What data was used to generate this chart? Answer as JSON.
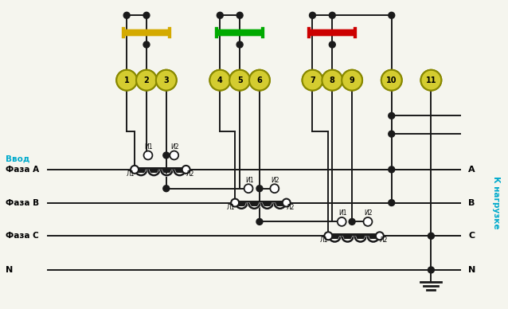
{
  "bg_color": "#f5f5ee",
  "fig_w": 6.38,
  "fig_h": 3.88,
  "vvod_label": "Ввод",
  "faza_a": "Фаза А",
  "faza_b": "Фаза В",
  "faza_c": "Фаза С",
  "n_label": "N",
  "k_nagruzke": "К нагрузке",
  "terminal_numbers": [
    "1",
    "2",
    "3",
    "4",
    "5",
    "6",
    "7",
    "8",
    "9",
    "10",
    "11"
  ],
  "terminal_color": "#d4cc30",
  "terminal_border": "#888800",
  "bus_yellow": "#d4aa00",
  "bus_green": "#00aa00",
  "bus_red": "#cc0000",
  "wire_color": "#1a1a1a",
  "label_color": "#00aacc",
  "dot_color": "#1a1a1a"
}
